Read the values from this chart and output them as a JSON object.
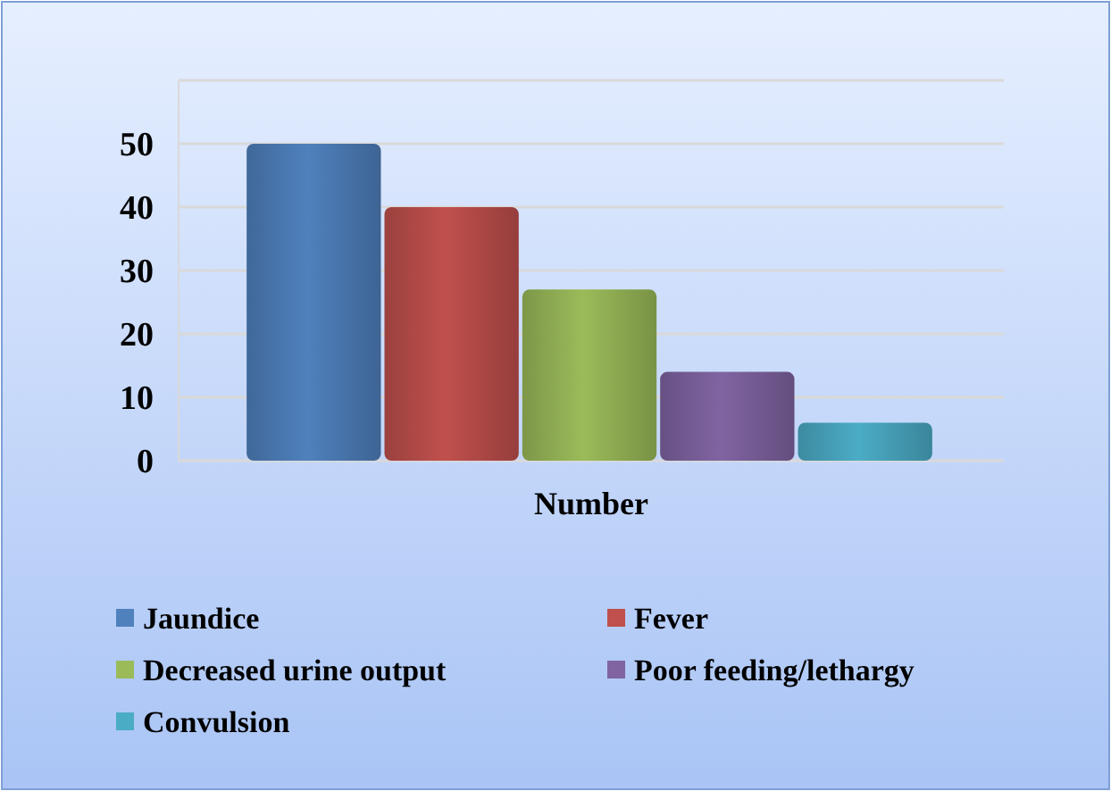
{
  "chart_data": {
    "type": "bar",
    "categories": [
      "Number"
    ],
    "series": [
      {
        "name": "Jaundice",
        "color": "#4f81bd",
        "values": [
          50
        ]
      },
      {
        "name": "Fever",
        "color": "#c0504d",
        "values": [
          40
        ]
      },
      {
        "name": "Decreased urine output",
        "color": "#9bbb59",
        "values": [
          27
        ]
      },
      {
        "name": "Poor feeding/lethargy",
        "color": "#8064a2",
        "values": [
          14
        ]
      },
      {
        "name": "Convulsion",
        "color": "#4bacc6",
        "values": [
          6
        ]
      }
    ],
    "ylim": [
      0,
      60
    ],
    "yticks": [
      0,
      10,
      20,
      30,
      40,
      50,
      {
        "value": 60,
        "label": null
      }
    ],
    "grid": "y",
    "legend": "bottom"
  }
}
